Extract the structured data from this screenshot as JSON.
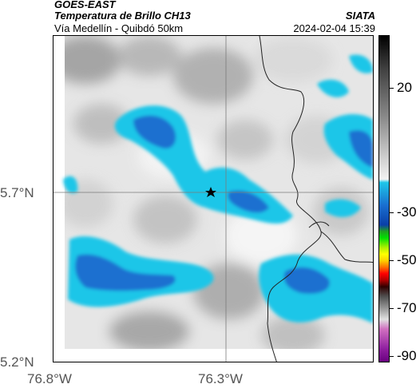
{
  "header": {
    "satellite": "GOES-EAST",
    "product": "Temperatura de Brillo CH13",
    "location": "Vía Medellín - Quibdó 50km",
    "organization": "SIATA",
    "timestamp": "2024-02-04 15:39"
  },
  "axes": {
    "lat_labels": [
      "5.7°N",
      "5.2°N"
    ],
    "lon_labels": [
      "76.8°W",
      "76.3°W"
    ]
  },
  "colorbar": {
    "labels": [
      "20",
      "-30",
      "-50",
      "-70",
      "-90"
    ]
  },
  "map": {
    "marker": "star-icon"
  }
}
